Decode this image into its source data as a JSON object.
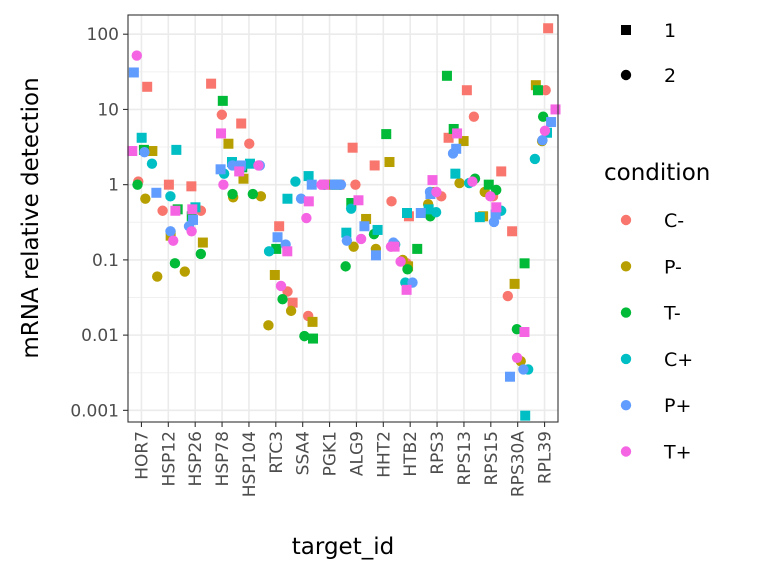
{
  "chart_data": {
    "type": "scatter",
    "title": "",
    "xlabel": "target_id",
    "ylabel": "mRNA relative detection",
    "y_scale": "log10",
    "ylim": [
      0.0007,
      180
    ],
    "y_ticks": [
      {
        "value": 100,
        "label": "100"
      },
      {
        "value": 10,
        "label": "10"
      },
      {
        "value": 1,
        "label": "1"
      },
      {
        "value": 0.1,
        "label": "0.1"
      },
      {
        "value": 0.01,
        "label": "0.01"
      },
      {
        "value": 0.001,
        "label": "0.001"
      }
    ],
    "grid": true,
    "categories": [
      "HOR7",
      "HSP12",
      "HSP26",
      "HSP78",
      "HSP104",
      "RTC3",
      "SSA4",
      "PGK1",
      "ALG9",
      "HHT2",
      "HTB2",
      "RPS3",
      "RPS13",
      "RPS15",
      "RPS30A",
      "RPL39"
    ],
    "legend_position": "right",
    "shape_legend": {
      "title": "",
      "items": [
        {
          "label": "1",
          "shape": "square"
        },
        {
          "label": "2",
          "shape": "circle"
        }
      ]
    },
    "color_legend": {
      "title": "condition",
      "items": [
        {
          "label": "C-",
          "color": "#F8766D"
        },
        {
          "label": "P-",
          "color": "#B79F00"
        },
        {
          "label": "T-",
          "color": "#00BA38"
        },
        {
          "label": "C+",
          "color": "#00BFC4"
        },
        {
          "label": "P+",
          "color": "#619CFF"
        },
        {
          "label": "T+",
          "color": "#F564E3"
        }
      ]
    },
    "series": [
      {
        "condition": "C-",
        "replicate": "1",
        "values": [
          20,
          1.0,
          0.95,
          22,
          6.5,
          0.28,
          0.027,
          1.0,
          3.1,
          1.8,
          0.38,
          4.2,
          18,
          1.5,
          0.24,
          120
        ]
      },
      {
        "condition": "C-",
        "replicate": "2",
        "values": [
          1.1,
          0.45,
          0.45,
          8.5,
          3.5,
          0.038,
          0.018,
          1.0,
          1.0,
          0.6,
          0.09,
          0.7,
          8.0,
          0.7,
          0.033,
          18
        ]
      },
      {
        "condition": "P-",
        "replicate": "1",
        "values": [
          2.8,
          0.21,
          0.17,
          3.5,
          1.2,
          0.063,
          0.015,
          1.0,
          0.35,
          2.0,
          0.082,
          0.8,
          3.8,
          0.38,
          0.048,
          21
        ]
      },
      {
        "condition": "P-",
        "replicate": "2",
        "values": [
          0.65,
          0.06,
          0.07,
          0.68,
          0.7,
          0.0135,
          0.021,
          1.0,
          0.15,
          0.14,
          0.1,
          0.55,
          1.05,
          0.8,
          0.0045,
          3.8
        ]
      },
      {
        "condition": "T-",
        "replicate": "1",
        "values": [
          2.9,
          0.47,
          0.38,
          13,
          1.7,
          0.14,
          0.009,
          1.0,
          0.57,
          4.7,
          0.14,
          28,
          5.5,
          1.0,
          0.09,
          18
        ]
      },
      {
        "condition": "T-",
        "replicate": "2",
        "values": [
          1.0,
          0.09,
          0.12,
          0.75,
          0.75,
          0.03,
          0.0097,
          1.0,
          0.082,
          0.22,
          0.075,
          0.38,
          1.2,
          0.85,
          0.012,
          8.0
        ]
      },
      {
        "condition": "C+",
        "replicate": "1",
        "values": [
          4.2,
          2.9,
          0.5,
          2.0,
          1.9,
          0.65,
          1.3,
          1.0,
          0.23,
          0.25,
          0.42,
          0.47,
          1.4,
          0.37,
          0.00085,
          4.9
        ]
      },
      {
        "condition": "C+",
        "replicate": "2",
        "values": [
          1.9,
          0.7,
          0.34,
          1.4,
          1.7,
          0.13,
          1.1,
          1.0,
          0.48,
          0.16,
          0.05,
          0.43,
          1.05,
          0.45,
          0.0035,
          2.2
        ]
      },
      {
        "condition": "P+",
        "replicate": "1",
        "values": [
          31,
          0.78,
          0.34,
          1.6,
          1.8,
          0.2,
          1.0,
          1.0,
          0.28,
          0.115,
          0.42,
          0.75,
          3.0,
          0.4,
          0.0028,
          6.8
        ]
      },
      {
        "condition": "P+",
        "replicate": "2",
        "values": [
          2.7,
          0.24,
          0.28,
          1.8,
          1.8,
          0.16,
          0.65,
          1.0,
          0.18,
          0.17,
          0.05,
          0.8,
          2.6,
          0.32,
          0.0035,
          3.9
        ]
      },
      {
        "condition": "T+",
        "replicate": "1",
        "values": [
          2.8,
          0.45,
          0.47,
          4.8,
          1.5,
          0.13,
          0.6,
          1.0,
          0.62,
          0.15,
          0.04,
          1.15,
          4.8,
          0.5,
          0.011,
          10
        ]
      },
      {
        "condition": "T+",
        "replicate": "2",
        "values": [
          52,
          0.18,
          0.24,
          1.0,
          1.8,
          0.045,
          0.36,
          1.0,
          0.19,
          0.15,
          0.095,
          0.8,
          1.1,
          0.7,
          0.005,
          5.2
        ]
      }
    ]
  }
}
